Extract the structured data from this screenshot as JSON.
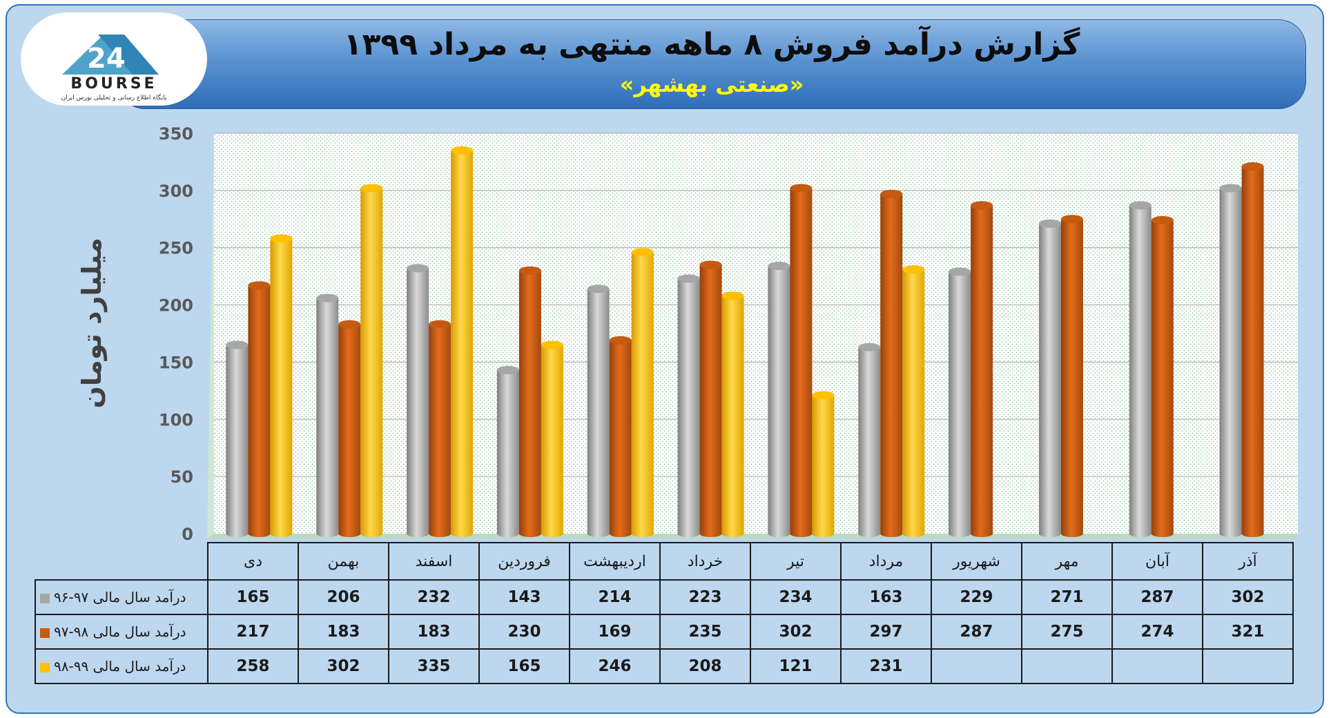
{
  "header": {
    "title": "گزارش درآمد فروش ۸ ماهه منتهی به مرداد ۱۳۹۹",
    "subtitle": "«صنعتی بهشهر»"
  },
  "logo": {
    "brand": "BOURSE",
    "tagline": "پایگاه اطلاع رسانی و تحلیلی بورس ایران"
  },
  "chart_data": {
    "type": "bar",
    "title": "گزارش درآمد فروش ۸ ماهه منتهی به مرداد ۱۳۹۹",
    "subtitle": "«صنعتی بهشهر»",
    "ylabel": "میلیارد تومان",
    "xlabel": "",
    "ylim": [
      0,
      350
    ],
    "yticks": [
      0,
      50,
      100,
      150,
      200,
      250,
      300,
      350
    ],
    "grid": true,
    "legend_position": "table-left",
    "categories": [
      "دی",
      "بهمن",
      "اسفند",
      "فروردین",
      "اردیبهشت",
      "خرداد",
      "تیر",
      "مرداد",
      "شهریور",
      "مهر",
      "آبان",
      "آذر"
    ],
    "series": [
      {
        "name": "درآمد سال مالی ۹۷-۹۶",
        "color": "#a6a6a6",
        "values": [
          165,
          206,
          232,
          143,
          214,
          223,
          234,
          163,
          229,
          271,
          287,
          302
        ]
      },
      {
        "name": "درآمد سال مالی ۹۸-۹۷",
        "color": "#c55a11",
        "values": [
          217,
          183,
          183,
          230,
          169,
          235,
          302,
          297,
          287,
          275,
          274,
          321
        ]
      },
      {
        "name": "درآمد سال مالی ۹۹-۹۸",
        "color": "#ffc000",
        "values": [
          258,
          302,
          335,
          165,
          246,
          208,
          121,
          231,
          null,
          null,
          null,
          null
        ]
      }
    ]
  }
}
